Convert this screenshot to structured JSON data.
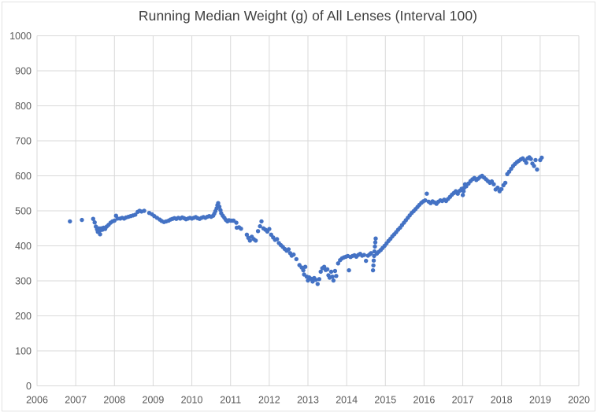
{
  "title_bar": {
    "title": "Running Median Weight (g) of All Lenses (Interval 100)"
  },
  "colors": {
    "point": "#4472C4",
    "grid": "#D9D9D9",
    "tick_label": "#595959",
    "title": "#404040",
    "background": "#FFFFFF"
  },
  "chart_data": {
    "type": "scatter",
    "title": "Running Median Weight (g) of All Lenses (Interval 100)",
    "xlabel": "",
    "ylabel": "",
    "xlim": [
      2006,
      2020
    ],
    "ylim": [
      0,
      1000
    ],
    "x_ticks": [
      2006,
      2007,
      2008,
      2009,
      2010,
      2011,
      2012,
      2013,
      2014,
      2015,
      2016,
      2017,
      2018,
      2019,
      2020
    ],
    "y_ticks": [
      0,
      100,
      200,
      300,
      400,
      500,
      600,
      700,
      800,
      900,
      1000
    ],
    "grid": true,
    "legend": false,
    "marker": "circle",
    "points": [
      [
        2006.85,
        470
      ],
      [
        2007.16,
        474
      ],
      [
        2007.45,
        477
      ],
      [
        2007.49,
        467
      ],
      [
        2007.52,
        455
      ],
      [
        2007.55,
        447
      ],
      [
        2007.57,
        440
      ],
      [
        2007.6,
        450
      ],
      [
        2007.63,
        433
      ],
      [
        2007.63,
        444
      ],
      [
        2007.66,
        450
      ],
      [
        2007.69,
        446
      ],
      [
        2007.72,
        452
      ],
      [
        2007.76,
        448
      ],
      [
        2007.8,
        455
      ],
      [
        2007.85,
        460
      ],
      [
        2007.9,
        466
      ],
      [
        2007.95,
        470
      ],
      [
        2008.0,
        472
      ],
      [
        2008.04,
        486
      ],
      [
        2008.08,
        478
      ],
      [
        2008.15,
        478
      ],
      [
        2008.2,
        480
      ],
      [
        2008.25,
        478
      ],
      [
        2008.3,
        481
      ],
      [
        2008.36,
        483
      ],
      [
        2008.42,
        485
      ],
      [
        2008.48,
        487
      ],
      [
        2008.54,
        489
      ],
      [
        2008.6,
        497
      ],
      [
        2008.65,
        500
      ],
      [
        2008.7,
        498
      ],
      [
        2008.77,
        500
      ],
      [
        2008.9,
        494
      ],
      [
        2008.97,
        490
      ],
      [
        2009.03,
        485
      ],
      [
        2009.1,
        480
      ],
      [
        2009.17,
        475
      ],
      [
        2009.22,
        471
      ],
      [
        2009.28,
        468
      ],
      [
        2009.34,
        470
      ],
      [
        2009.4,
        472
      ],
      [
        2009.45,
        475
      ],
      [
        2009.5,
        477
      ],
      [
        2009.55,
        479
      ],
      [
        2009.6,
        477
      ],
      [
        2009.65,
        480
      ],
      [
        2009.7,
        478
      ],
      [
        2009.75,
        481
      ],
      [
        2009.8,
        479
      ],
      [
        2009.85,
        476
      ],
      [
        2009.9,
        478
      ],
      [
        2009.95,
        480
      ],
      [
        2010.0,
        478
      ],
      [
        2010.05,
        480
      ],
      [
        2010.1,
        482
      ],
      [
        2010.15,
        479
      ],
      [
        2010.2,
        477
      ],
      [
        2010.25,
        480
      ],
      [
        2010.3,
        482
      ],
      [
        2010.35,
        480
      ],
      [
        2010.4,
        483
      ],
      [
        2010.45,
        485
      ],
      [
        2010.5,
        483
      ],
      [
        2010.55,
        486
      ],
      [
        2010.58,
        492
      ],
      [
        2010.61,
        499
      ],
      [
        2010.64,
        507
      ],
      [
        2010.66,
        516
      ],
      [
        2010.68,
        522
      ],
      [
        2010.71,
        512
      ],
      [
        2010.74,
        502
      ],
      [
        2010.76,
        493
      ],
      [
        2010.8,
        486
      ],
      [
        2010.84,
        480
      ],
      [
        2010.88,
        474
      ],
      [
        2010.92,
        470
      ],
      [
        2010.96,
        473
      ],
      [
        2011.0,
        472
      ],
      [
        2011.04,
        472
      ],
      [
        2011.08,
        472
      ],
      [
        2011.15,
        466
      ],
      [
        2011.16,
        452
      ],
      [
        2011.22,
        453
      ],
      [
        2011.27,
        449
      ],
      [
        2011.42,
        432
      ],
      [
        2011.46,
        423
      ],
      [
        2011.5,
        415
      ],
      [
        2011.55,
        426
      ],
      [
        2011.6,
        419
      ],
      [
        2011.65,
        415
      ],
      [
        2011.71,
        442
      ],
      [
        2011.76,
        456
      ],
      [
        2011.8,
        470
      ],
      [
        2011.85,
        450
      ],
      [
        2011.9,
        446
      ],
      [
        2011.95,
        441
      ],
      [
        2012.0,
        448
      ],
      [
        2012.05,
        432
      ],
      [
        2012.1,
        424
      ],
      [
        2012.15,
        417
      ],
      [
        2012.2,
        419
      ],
      [
        2012.25,
        408
      ],
      [
        2012.3,
        402
      ],
      [
        2012.35,
        397
      ],
      [
        2012.4,
        391
      ],
      [
        2012.45,
        386
      ],
      [
        2012.5,
        390
      ],
      [
        2012.54,
        379
      ],
      [
        2012.58,
        372
      ],
      [
        2012.63,
        375
      ],
      [
        2012.7,
        362
      ],
      [
        2012.78,
        345
      ],
      [
        2012.84,
        338
      ],
      [
        2012.88,
        330
      ],
      [
        2012.9,
        318
      ],
      [
        2012.93,
        340
      ],
      [
        2012.97,
        312
      ],
      [
        2013.0,
        301
      ],
      [
        2013.03,
        310
      ],
      [
        2013.08,
        306
      ],
      [
        2013.12,
        298
      ],
      [
        2013.16,
        308
      ],
      [
        2013.2,
        303
      ],
      [
        2013.25,
        291
      ],
      [
        2013.29,
        305
      ],
      [
        2013.33,
        326
      ],
      [
        2013.37,
        336
      ],
      [
        2013.42,
        340
      ],
      [
        2013.46,
        331
      ],
      [
        2013.5,
        333
      ],
      [
        2013.53,
        316
      ],
      [
        2013.56,
        309
      ],
      [
        2013.6,
        326
      ],
      [
        2013.63,
        312
      ],
      [
        2013.66,
        301
      ],
      [
        2013.7,
        328
      ],
      [
        2013.73,
        314
      ],
      [
        2013.78,
        350
      ],
      [
        2013.83,
        359
      ],
      [
        2013.88,
        364
      ],
      [
        2013.93,
        367
      ],
      [
        2013.98,
        369
      ],
      [
        2014.03,
        371
      ],
      [
        2014.06,
        330
      ],
      [
        2014.1,
        368
      ],
      [
        2014.15,
        371
      ],
      [
        2014.2,
        373
      ],
      [
        2014.25,
        369
      ],
      [
        2014.3,
        374
      ],
      [
        2014.35,
        377
      ],
      [
        2014.4,
        372
      ],
      [
        2014.45,
        374
      ],
      [
        2014.5,
        357
      ],
      [
        2014.55,
        372
      ],
      [
        2014.6,
        376
      ],
      [
        2014.63,
        379
      ],
      [
        2014.68,
        330
      ],
      [
        2014.69,
        344
      ],
      [
        2014.7,
        358
      ],
      [
        2014.71,
        371
      ],
      [
        2014.72,
        384
      ],
      [
        2014.73,
        398
      ],
      [
        2014.74,
        410
      ],
      [
        2014.75,
        421
      ],
      [
        2014.78,
        378
      ],
      [
        2014.83,
        383
      ],
      [
        2014.88,
        388
      ],
      [
        2014.93,
        394
      ],
      [
        2014.98,
        400
      ],
      [
        2015.03,
        407
      ],
      [
        2015.08,
        414
      ],
      [
        2015.13,
        420
      ],
      [
        2015.18,
        427
      ],
      [
        2015.23,
        433
      ],
      [
        2015.28,
        439
      ],
      [
        2015.33,
        446
      ],
      [
        2015.38,
        452
      ],
      [
        2015.43,
        459
      ],
      [
        2015.48,
        466
      ],
      [
        2015.53,
        473
      ],
      [
        2015.58,
        480
      ],
      [
        2015.63,
        487
      ],
      [
        2015.68,
        494
      ],
      [
        2015.73,
        499
      ],
      [
        2015.78,
        505
      ],
      [
        2015.83,
        511
      ],
      [
        2015.88,
        517
      ],
      [
        2015.93,
        523
      ],
      [
        2015.98,
        527
      ],
      [
        2016.03,
        530
      ],
      [
        2016.07,
        549
      ],
      [
        2016.12,
        526
      ],
      [
        2016.17,
        522
      ],
      [
        2016.22,
        527
      ],
      [
        2016.27,
        524
      ],
      [
        2016.32,
        520
      ],
      [
        2016.37,
        526
      ],
      [
        2016.42,
        530
      ],
      [
        2016.47,
        528
      ],
      [
        2016.52,
        532
      ],
      [
        2016.57,
        528
      ],
      [
        2016.62,
        534
      ],
      [
        2016.67,
        540
      ],
      [
        2016.72,
        546
      ],
      [
        2016.77,
        551
      ],
      [
        2016.82,
        556
      ],
      [
        2016.87,
        549
      ],
      [
        2016.92,
        557
      ],
      [
        2016.97,
        563
      ],
      [
        2017.0,
        545
      ],
      [
        2017.02,
        556
      ],
      [
        2017.04,
        566
      ],
      [
        2017.06,
        576
      ],
      [
        2017.09,
        570
      ],
      [
        2017.15,
        578
      ],
      [
        2017.2,
        585
      ],
      [
        2017.25,
        590
      ],
      [
        2017.3,
        594
      ],
      [
        2017.35,
        588
      ],
      [
        2017.4,
        592
      ],
      [
        2017.45,
        597
      ],
      [
        2017.5,
        600
      ],
      [
        2017.55,
        595
      ],
      [
        2017.6,
        590
      ],
      [
        2017.65,
        585
      ],
      [
        2017.7,
        580
      ],
      [
        2017.75,
        584
      ],
      [
        2017.8,
        576
      ],
      [
        2017.85,
        561
      ],
      [
        2017.9,
        566
      ],
      [
        2017.95,
        556
      ],
      [
        2018.0,
        562
      ],
      [
        2018.05,
        573
      ],
      [
        2018.1,
        580
      ],
      [
        2018.15,
        605
      ],
      [
        2018.2,
        612
      ],
      [
        2018.25,
        620
      ],
      [
        2018.3,
        628
      ],
      [
        2018.35,
        634
      ],
      [
        2018.4,
        639
      ],
      [
        2018.45,
        643
      ],
      [
        2018.5,
        647
      ],
      [
        2018.55,
        650
      ],
      [
        2018.6,
        644
      ],
      [
        2018.64,
        637
      ],
      [
        2018.68,
        650
      ],
      [
        2018.72,
        653
      ],
      [
        2018.76,
        648
      ],
      [
        2018.8,
        635
      ],
      [
        2018.84,
        628
      ],
      [
        2018.88,
        645
      ],
      [
        2018.92,
        618
      ],
      [
        2019.0,
        645
      ],
      [
        2019.04,
        652
      ]
    ]
  }
}
